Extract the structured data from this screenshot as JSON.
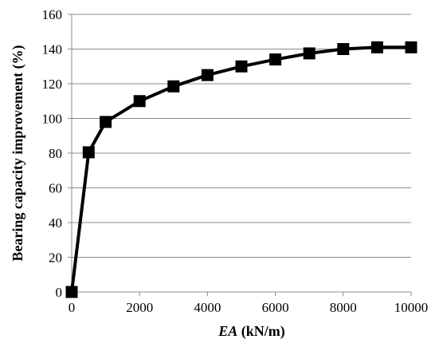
{
  "chart_data": {
    "type": "line",
    "xlabel_italic": "EA",
    "xlabel_rest": " (kN/m)",
    "ylabel": "Bearing capacity improvement (%)",
    "xlim": [
      0,
      10000
    ],
    "ylim": [
      0,
      160
    ],
    "xticks": [
      0,
      2000,
      4000,
      6000,
      8000,
      10000
    ],
    "yticks": [
      0,
      20,
      40,
      60,
      80,
      100,
      120,
      140,
      160
    ],
    "grid": "horizontal",
    "line_color": "#000000",
    "marker": "square",
    "series": [
      {
        "x": [
          0,
          500,
          1000,
          2000,
          3000,
          4000,
          5000,
          6000,
          7000,
          8000,
          9000,
          10000
        ],
        "values": [
          0,
          80.5,
          98,
          110,
          118.5,
          125,
          130,
          134,
          137.5,
          140,
          141,
          141
        ]
      }
    ]
  }
}
